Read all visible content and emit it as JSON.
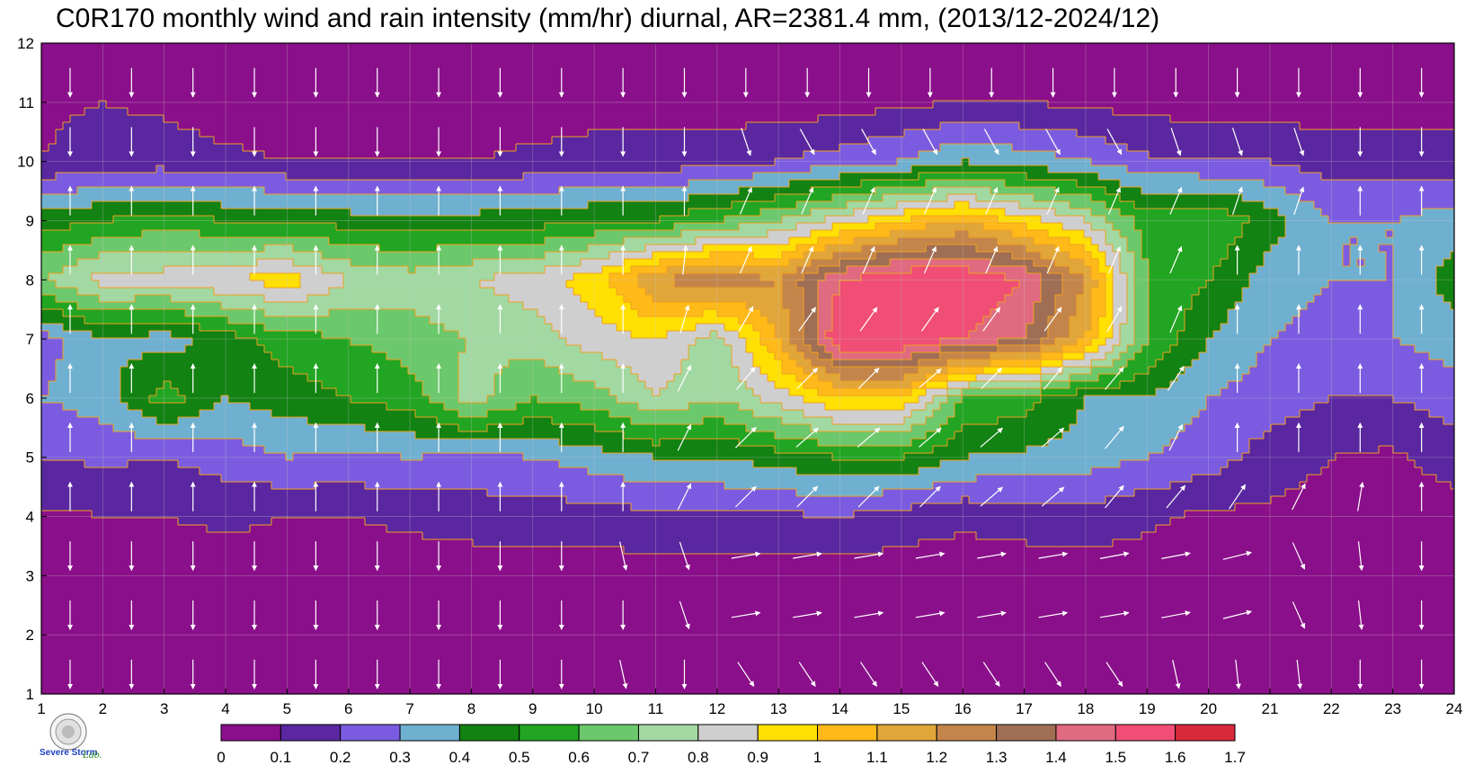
{
  "title": "C0R170 monthly wind and rain intensity (mm/hr) diurnal, AR=2381.4 mm, (2013/12-2024/12)",
  "chart_data": {
    "type": "heatmap",
    "title": "C0R170 monthly wind and rain intensity (mm/hr) diurnal, AR=2381.4 mm, (2013/12-2024/12)",
    "xlabel": "",
    "ylabel": "",
    "xlim": [
      1,
      24
    ],
    "ylim": [
      1,
      12
    ],
    "x_ticks": [
      "1",
      "2",
      "3",
      "4",
      "5",
      "6",
      "7",
      "8",
      "9",
      "10",
      "11",
      "12",
      "13",
      "14",
      "15",
      "16",
      "17",
      "18",
      "19",
      "20",
      "21",
      "22",
      "23",
      "24"
    ],
    "y_ticks": [
      "1",
      "2",
      "3",
      "4",
      "5",
      "6",
      "7",
      "8",
      "9",
      "10",
      "11",
      "12"
    ],
    "grid": true,
    "colorbar": {
      "levels": [
        "0",
        "0.1",
        "0.2",
        "0.3",
        "0.4",
        "0.5",
        "0.6",
        "0.7",
        "0.8",
        "0.9",
        "1",
        "1.1",
        "1.2",
        "1.3",
        "1.4",
        "1.5",
        "1.6",
        "1.7"
      ],
      "colors": [
        "#8a0f8a",
        "#5a27a0",
        "#7b5ce0",
        "#6fb0d0",
        "#128212",
        "#22a522",
        "#6cc86c",
        "#a2d8a2",
        "#cfcfcf",
        "#ffe000",
        "#ffba1a",
        "#e0a63a",
        "#c4854a",
        "#a06e55",
        "#e06a80",
        "#f04e75",
        "#d8283c"
      ]
    },
    "contour_color": "#f0a020",
    "arrow_color": "#ffffff",
    "rain_intensity_mm_hr": [
      [
        0.05,
        0.05,
        0.05,
        0.05,
        0.05,
        0.05,
        0.05,
        0.05,
        0.05,
        0.05,
        0.05,
        0.05,
        0.05,
        0.05,
        0.05,
        0.05,
        0.05,
        0.05,
        0.05,
        0.05,
        0.05,
        0.05,
        0.05,
        0.05
      ],
      [
        0.05,
        0.05,
        0.05,
        0.05,
        0.05,
        0.05,
        0.05,
        0.05,
        0.05,
        0.05,
        0.05,
        0.05,
        0.05,
        0.05,
        0.05,
        0.05,
        0.05,
        0.05,
        0.05,
        0.05,
        0.05,
        0.05,
        0.05,
        0.05
      ],
      [
        0.05,
        0.05,
        0.05,
        0.05,
        0.05,
        0.05,
        0.05,
        0.05,
        0.05,
        0.05,
        0.05,
        0.05,
        0.05,
        0.05,
        0.05,
        0.05,
        0.05,
        0.05,
        0.05,
        0.05,
        0.05,
        0.05,
        0.05,
        0.05
      ],
      [
        0.08,
        0.1,
        0.1,
        0.12,
        0.1,
        0.1,
        0.12,
        0.14,
        0.15,
        0.15,
        0.18,
        0.18,
        0.18,
        0.2,
        0.15,
        0.12,
        0.14,
        0.16,
        0.12,
        0.08,
        0.08,
        0.06,
        0.05,
        0.05
      ],
      [
        0.2,
        0.22,
        0.2,
        0.25,
        0.3,
        0.28,
        0.3,
        0.28,
        0.3,
        0.35,
        0.4,
        0.4,
        0.45,
        0.5,
        0.5,
        0.4,
        0.38,
        0.35,
        0.3,
        0.25,
        0.15,
        0.1,
        0.08,
        0.15
      ],
      [
        0.3,
        0.35,
        0.55,
        0.4,
        0.45,
        0.5,
        0.55,
        0.75,
        0.6,
        0.65,
        0.8,
        0.7,
        0.85,
        1.0,
        1.0,
        0.6,
        0.55,
        0.4,
        0.4,
        0.3,
        0.25,
        0.2,
        0.2,
        0.25
      ],
      [
        0.25,
        0.4,
        0.35,
        0.45,
        0.55,
        0.6,
        0.65,
        0.7,
        0.75,
        0.85,
        0.9,
        0.75,
        1.1,
        1.6,
        1.6,
        1.5,
        1.4,
        1.1,
        0.6,
        0.4,
        0.3,
        0.25,
        0.3,
        0.35
      ],
      [
        0.7,
        0.85,
        0.85,
        0.9,
        0.95,
        0.8,
        0.75,
        0.8,
        0.85,
        0.95,
        1.2,
        1.3,
        1.2,
        1.5,
        1.6,
        1.6,
        1.5,
        1.2,
        0.6,
        0.5,
        0.35,
        0.3,
        0.3,
        0.45
      ],
      [
        0.45,
        0.5,
        0.55,
        0.5,
        0.5,
        0.45,
        0.45,
        0.45,
        0.45,
        0.5,
        0.5,
        0.6,
        0.7,
        0.85,
        1.0,
        1.1,
        0.95,
        0.8,
        0.55,
        0.6,
        0.45,
        0.3,
        0.3,
        0.35
      ],
      [
        0.1,
        0.15,
        0.15,
        0.12,
        0.1,
        0.1,
        0.1,
        0.1,
        0.12,
        0.15,
        0.15,
        0.15,
        0.2,
        0.25,
        0.3,
        0.4,
        0.35,
        0.3,
        0.22,
        0.2,
        0.2,
        0.15,
        0.15,
        0.15
      ],
      [
        0.08,
        0.1,
        0.08,
        0.05,
        0.05,
        0.05,
        0.05,
        0.05,
        0.05,
        0.05,
        0.05,
        0.05,
        0.05,
        0.05,
        0.08,
        0.1,
        0.1,
        0.08,
        0.06,
        0.05,
        0.05,
        0.05,
        0.05,
        0.05
      ],
      [
        0.05,
        0.05,
        0.05,
        0.05,
        0.05,
        0.05,
        0.05,
        0.05,
        0.05,
        0.05,
        0.05,
        0.05,
        0.05,
        0.05,
        0.05,
        0.05,
        0.05,
        0.05,
        0.05,
        0.05,
        0.05,
        0.05,
        0.05,
        0.05
      ]
    ],
    "wind_vectors_u": [
      [
        0.0,
        0.0,
        0.0,
        0.0,
        0.0,
        0.0,
        0.0,
        0.0,
        0.0,
        0.2,
        0.0,
        0.6,
        0.6,
        0.6,
        0.6,
        0.6,
        0.6,
        0.6,
        0.2,
        0.1,
        0.1,
        0.0,
        0.0,
        0.0
      ],
      [
        0.0,
        0.0,
        0.0,
        0.0,
        0.0,
        0.0,
        0.0,
        0.0,
        0.0,
        0.0,
        0.3,
        0.9,
        0.9,
        0.9,
        0.9,
        0.9,
        0.9,
        0.9,
        0.8,
        0.6,
        0.4,
        0.1,
        0.0,
        0.0
      ],
      [
        0.0,
        0.0,
        0.0,
        0.0,
        0.0,
        0.0,
        0.0,
        0.0,
        0.0,
        0.2,
        0.3,
        0.9,
        0.9,
        0.9,
        0.9,
        0.9,
        0.9,
        0.8,
        0.8,
        0.6,
        0.4,
        0.1,
        0.0,
        0.0
      ],
      [
        0.0,
        0.0,
        0.0,
        0.0,
        0.0,
        0.0,
        0.0,
        0.0,
        0.0,
        0.0,
        0.3,
        0.6,
        0.6,
        0.6,
        0.6,
        0.7,
        0.7,
        0.5,
        0.5,
        0.4,
        0.3,
        0.1,
        0.0,
        0.0
      ],
      [
        0.0,
        0.0,
        0.0,
        0.0,
        0.0,
        0.0,
        0.0,
        0.0,
        0.0,
        0.0,
        0.3,
        0.6,
        0.7,
        0.7,
        0.7,
        0.7,
        0.7,
        0.5,
        0.3,
        0.0,
        0.0,
        0.0,
        0.0,
        0.0
      ],
      [
        0.0,
        0.0,
        0.0,
        0.0,
        0.0,
        0.0,
        0.0,
        0.0,
        0.0,
        0.0,
        0.3,
        0.5,
        0.6,
        0.6,
        0.7,
        0.6,
        0.5,
        0.5,
        0.4,
        0.0,
        0.0,
        0.0,
        0.0,
        0.0
      ],
      [
        0.0,
        0.0,
        0.0,
        0.0,
        0.0,
        0.0,
        0.0,
        0.0,
        0.0,
        0.0,
        0.2,
        0.4,
        0.5,
        0.5,
        0.5,
        0.5,
        0.5,
        0.4,
        0.3,
        0.0,
        0.0,
        0.0,
        0.0,
        0.0
      ],
      [
        0.0,
        0.0,
        0.0,
        0.0,
        0.0,
        0.0,
        0.0,
        0.0,
        0.0,
        0.0,
        0.1,
        0.3,
        0.3,
        0.3,
        0.3,
        0.3,
        0.3,
        0.3,
        0.3,
        0.0,
        0.0,
        0.0,
        0.0,
        0.0
      ],
      [
        0.0,
        0.0,
        0.0,
        0.0,
        0.0,
        0.0,
        0.0,
        0.0,
        0.0,
        0.0,
        0.0,
        0.3,
        0.3,
        0.3,
        0.3,
        0.3,
        0.3,
        0.3,
        0.3,
        0.3,
        0.3,
        0.0,
        0.0,
        0.0
      ],
      [
        0.0,
        0.0,
        0.0,
        0.0,
        0.0,
        0.0,
        0.0,
        0.0,
        0.0,
        0.0,
        0.0,
        0.3,
        0.5,
        0.5,
        0.5,
        0.5,
        0.5,
        0.5,
        0.3,
        0.3,
        0.3,
        0.0,
        0.0,
        0.0
      ],
      [
        0.0,
        0.0,
        0.0,
        0.0,
        0.0,
        0.0,
        0.0,
        0.0,
        0.0,
        0.0,
        0.0,
        0.0,
        0.0,
        0.0,
        0.0,
        0.0,
        0.0,
        0.0,
        0.0,
        0.0,
        0.0,
        0.0,
        0.0,
        0.0
      ],
      [
        0.0,
        0.0,
        0.0,
        0.0,
        0.0,
        0.0,
        0.0,
        0.0,
        0.0,
        0.0,
        0.0,
        0.0,
        0.0,
        0.0,
        0.0,
        0.0,
        0.0,
        0.0,
        0.0,
        0.0,
        0.0,
        0.0,
        0.0,
        0.0
      ]
    ]
  },
  "logo": {
    "text": "Severe Storm",
    "lab": "Lab."
  }
}
